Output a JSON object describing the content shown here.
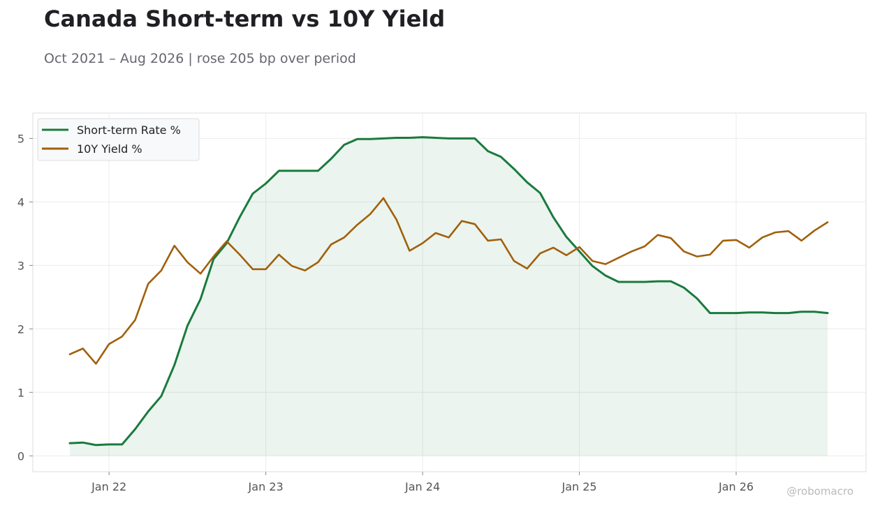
{
  "header": {
    "title": "Canada Short-term vs 10Y Yield",
    "subtitle": "Oct 2021 – Aug 2026 | rose 205 bp over period"
  },
  "watermark": "@robomacro",
  "chart_data": {
    "type": "line",
    "title": "Canada Short-term vs 10Y Yield",
    "subtitle": "Oct 2021 – Aug 2026 | rose 205 bp over period",
    "xlabel": "",
    "ylabel": "",
    "x_start": "2021-10",
    "x_ticks": [
      {
        "label": "Jan 22",
        "date": "2022-01"
      },
      {
        "label": "Jan 23",
        "date": "2023-01"
      },
      {
        "label": "Jan 24",
        "date": "2024-01"
      },
      {
        "label": "Jan 25",
        "date": "2025-01"
      },
      {
        "label": "Jan 26",
        "date": "2026-01"
      }
    ],
    "y_ticks": [
      0,
      1,
      2,
      3,
      4,
      5
    ],
    "ylim": [
      -0.25,
      5.4
    ],
    "grid": true,
    "legend_position": "top-left",
    "series": [
      {
        "name": "Short-term Rate %",
        "color": "#1a7a3e",
        "fill": true,
        "values": [
          0.2,
          0.21,
          0.17,
          0.18,
          0.18,
          0.42,
          0.7,
          0.94,
          1.43,
          2.05,
          2.47,
          3.1,
          3.35,
          3.76,
          4.13,
          4.29,
          4.49,
          4.49,
          4.49,
          4.49,
          4.68,
          4.9,
          4.99,
          4.99,
          5.0,
          5.01,
          5.01,
          5.02,
          5.01,
          5.0,
          5.0,
          5.0,
          4.8,
          4.71,
          4.52,
          4.31,
          4.14,
          3.76,
          3.45,
          3.22,
          2.99,
          2.84,
          2.74,
          2.74,
          2.74,
          2.75,
          2.75,
          2.65,
          2.48,
          2.25,
          2.25,
          2.25,
          2.26,
          2.26,
          2.25,
          2.25,
          2.27,
          2.27,
          2.25
        ]
      },
      {
        "name": "10Y Yield %",
        "color": "#a0600c",
        "fill": false,
        "values": [
          1.6,
          1.69,
          1.45,
          1.76,
          1.88,
          2.14,
          2.71,
          2.92,
          3.31,
          3.05,
          2.87,
          3.14,
          3.38,
          3.17,
          2.94,
          2.94,
          3.17,
          2.99,
          2.92,
          3.05,
          3.33,
          3.44,
          3.64,
          3.81,
          4.06,
          3.72,
          3.23,
          3.35,
          3.51,
          3.44,
          3.7,
          3.65,
          3.39,
          3.41,
          3.07,
          2.95,
          3.19,
          3.28,
          3.16,
          3.29,
          3.07,
          3.02,
          3.12,
          3.22,
          3.3,
          3.48,
          3.43,
          3.22,
          3.14,
          3.17,
          3.39,
          3.4,
          3.28,
          3.44,
          3.52,
          3.54,
          3.39,
          3.55,
          3.68
        ]
      }
    ]
  }
}
